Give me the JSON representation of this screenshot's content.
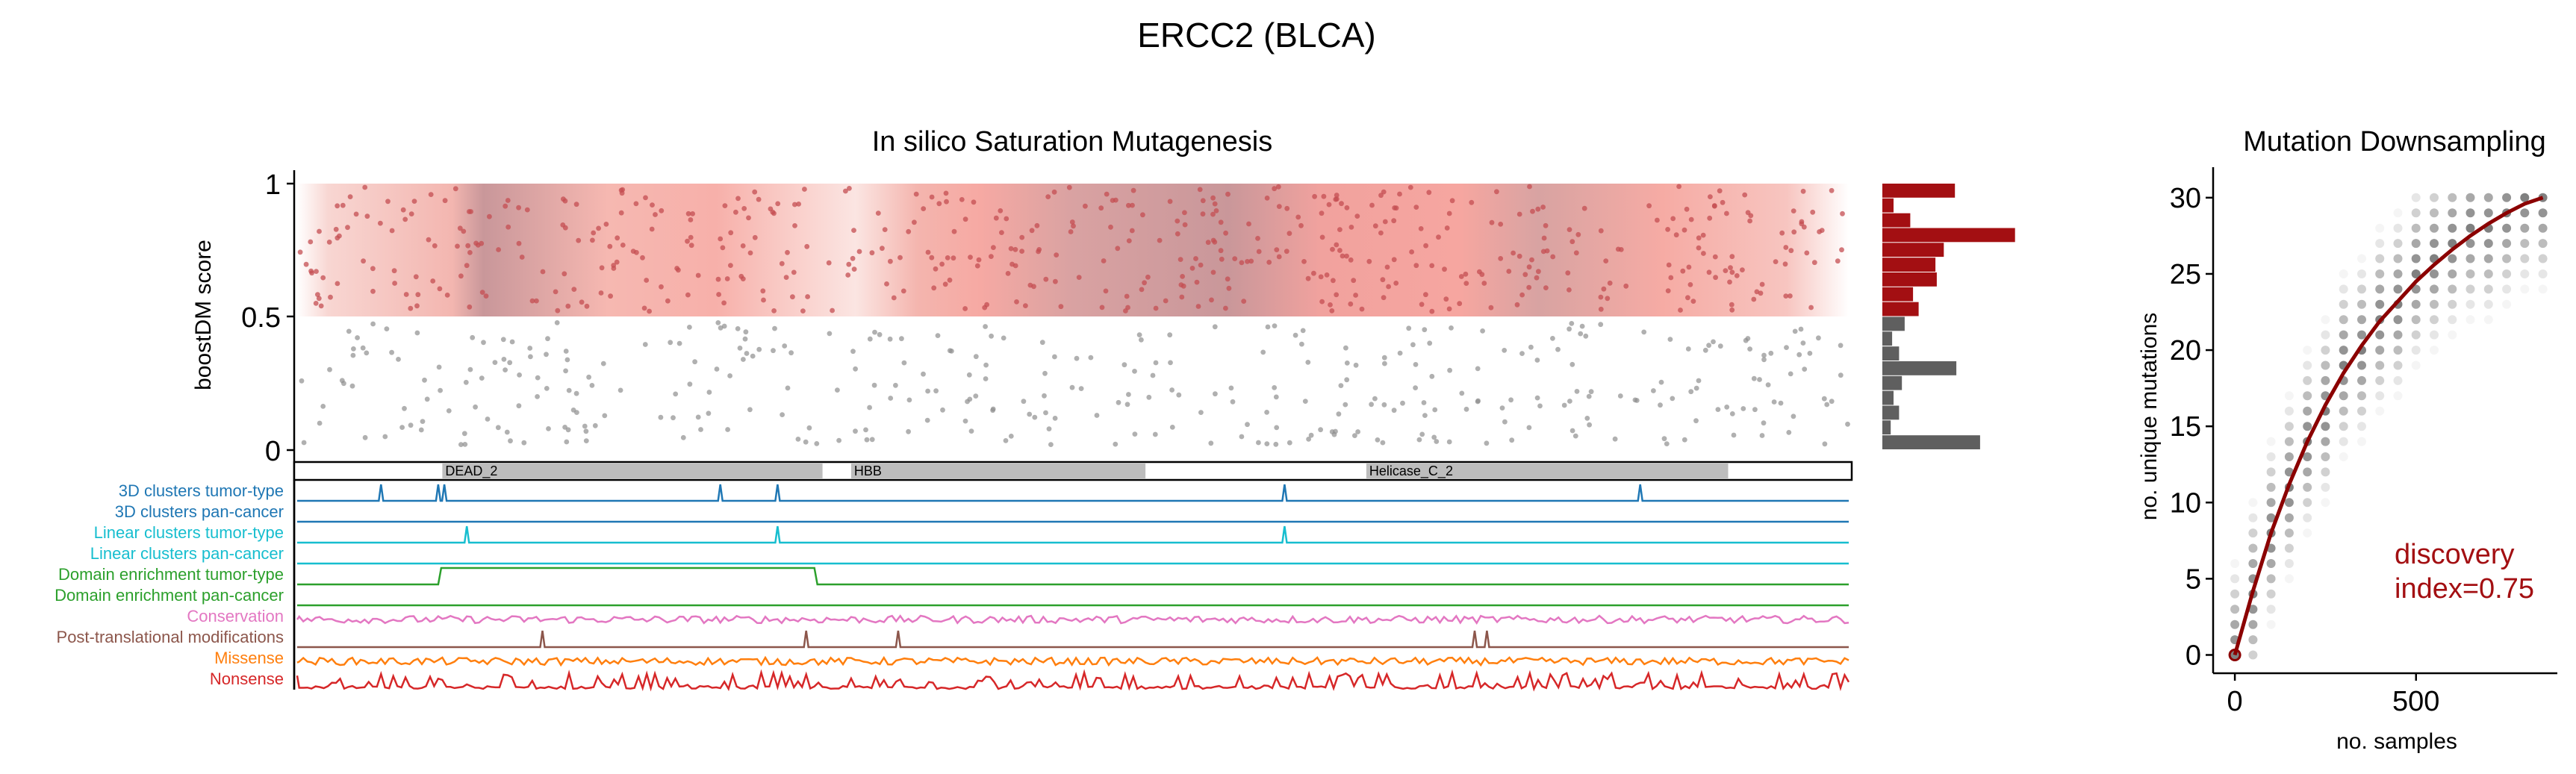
{
  "figure": {
    "title": "ERCC2 (BLCA)"
  },
  "chart_data": [
    {
      "panel": "saturation",
      "type": "scatter",
      "title": "In silico Saturation Mutagenesis",
      "ylabel": "boostDM score",
      "ylim": [
        0,
        1
      ],
      "yticks": [
        0,
        0.5,
        1
      ],
      "ytick_labels": [
        "0",
        "0.5",
        "1"
      ],
      "xlim": [
        1,
        760
      ],
      "threshold": 0.5,
      "colors": {
        "driver_points": "#c44e52",
        "passenger_points": "#8f8f8f",
        "band_light": "#f8c4c0",
        "band_dark": "#c9979a",
        "hist_driver": "#a30f12",
        "hist_passenger": "#5f5f5f"
      },
      "hist_driver": [
        0.52,
        0.08,
        0.2,
        0.95,
        0.44,
        0.38,
        0.39,
        0.22,
        0.26
      ],
      "hist_passenger": [
        0.16,
        0.07,
        0.12,
        0.53,
        0.14,
        0.08,
        0.12,
        0.06,
        0.7
      ],
      "domains": [
        {
          "name": "DEAD_2",
          "start": 72,
          "end": 258
        },
        {
          "name": "HBB",
          "start": 272,
          "end": 416
        },
        {
          "name": "Helicase_C_2",
          "start": 524,
          "end": 701
        }
      ],
      "tracks": [
        {
          "name": "3D clusters tumor-type",
          "color": "#1f77b4",
          "kind": "peaks",
          "peaks": [
            42,
            70,
            73,
            208,
            236,
            484,
            658
          ]
        },
        {
          "name": "3D clusters pan-cancer",
          "color": "#1f77b4",
          "kind": "flat"
        },
        {
          "name": "Linear clusters tumor-type",
          "color": "#17becf",
          "kind": "peaks",
          "peaks": [
            84,
            236,
            484
          ]
        },
        {
          "name": "Linear clusters pan-cancer",
          "color": "#17becf",
          "kind": "flat"
        },
        {
          "name": "Domain enrichment tumor-type",
          "color": "#2ca02c",
          "kind": "step",
          "start": 70,
          "end": 254
        },
        {
          "name": "Domain enrichment pan-cancer",
          "color": "#2ca02c",
          "kind": "flat"
        },
        {
          "name": "Conservation",
          "color": "#e377c2",
          "kind": "noise"
        },
        {
          "name": "Post-translational modifications",
          "color": "#8c564b",
          "kind": "peaks",
          "peaks": [
            121,
            250,
            295,
            577,
            583
          ]
        },
        {
          "name": "Missense",
          "color": "#ff7f0e",
          "kind": "noise"
        },
        {
          "name": "Nonsense",
          "color": "#d62728",
          "kind": "spiky"
        }
      ]
    },
    {
      "panel": "downsampling",
      "type": "line",
      "title": "Mutation Downsampling",
      "xlabel": "no. samples",
      "ylabel": "no. unique mutations",
      "xlim": [
        -60,
        890
      ],
      "ylim": [
        -1.2,
        32
      ],
      "xticks": [
        0,
        500
      ],
      "yticks": [
        0,
        5,
        10,
        15,
        20,
        25,
        30
      ],
      "x": [
        0,
        50,
        100,
        150,
        200,
        250,
        300,
        350,
        400,
        450,
        500,
        550,
        600,
        650,
        700,
        750,
        800,
        850
      ],
      "y": [
        0,
        4.2,
        8,
        11.2,
        14,
        16.4,
        18.5,
        20.3,
        21.9,
        23.2,
        24.5,
        25.6,
        26.6,
        27.5,
        28.3,
        29,
        29.6,
        30
      ],
      "annotation": "discovery\nindex=0.75",
      "annotation_lines": [
        "discovery",
        "index=0.75"
      ],
      "colors": {
        "curve": "#8b0000",
        "points": "#555555",
        "annotation": "#a30f12"
      }
    }
  ]
}
